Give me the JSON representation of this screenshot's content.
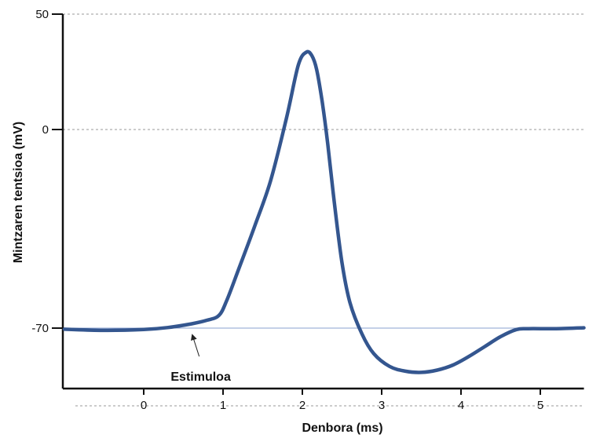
{
  "chart_data": {
    "type": "line",
    "title": "",
    "xlabel": "Denbora (ms)",
    "ylabel": "Mintzaren tentsioa (mV)",
    "xlim": [
      -1,
      5.55
    ],
    "ylim": [
      -85,
      50
    ],
    "x_ticks": [
      0,
      1,
      2,
      3,
      4,
      5
    ],
    "x_tick_labels": [
      "0",
      "1",
      "2",
      "3",
      "4",
      "5"
    ],
    "y_ticks": [
      50,
      0,
      -70
    ],
    "y_tick_labels": [
      "50",
      "0",
      "-70"
    ],
    "grid": "dashed horizontal at y ticks",
    "line_color": "#34568f",
    "grid_color": "#9a9a9a",
    "baseline_color": "#8aa0cf",
    "series": [
      {
        "x": [
          -1,
          -0.5,
          0,
          0.3,
          0.6,
          0.8,
          0.95,
          1.05,
          1.2,
          1.4,
          1.6,
          1.8,
          1.95,
          2.05,
          2.12,
          2.18,
          2.25,
          2.32,
          2.4,
          2.5,
          2.6,
          2.75,
          2.9,
          3.1,
          3.3,
          3.5,
          3.7,
          3.9,
          4.1,
          4.3,
          4.5,
          4.7,
          4.85,
          5.2,
          5.55
        ],
        "y": [
          -70.4,
          -70.8,
          -70.5,
          -69.8,
          -68.5,
          -67.2,
          -65.5,
          -60,
          -49,
          -34,
          -18,
          5,
          28,
          33.5,
          32,
          26,
          12,
          -5,
          -25,
          -47,
          -61,
          -72,
          -79,
          -83.5,
          -85.2,
          -85.6,
          -84.8,
          -83,
          -80,
          -76.5,
          -73,
          -70.5,
          -70.2,
          -70.2,
          -69.9
        ]
      }
    ],
    "annotations": [
      {
        "text": "Estimuloa",
        "x": 0.62,
        "y": -70.3
      }
    ]
  }
}
